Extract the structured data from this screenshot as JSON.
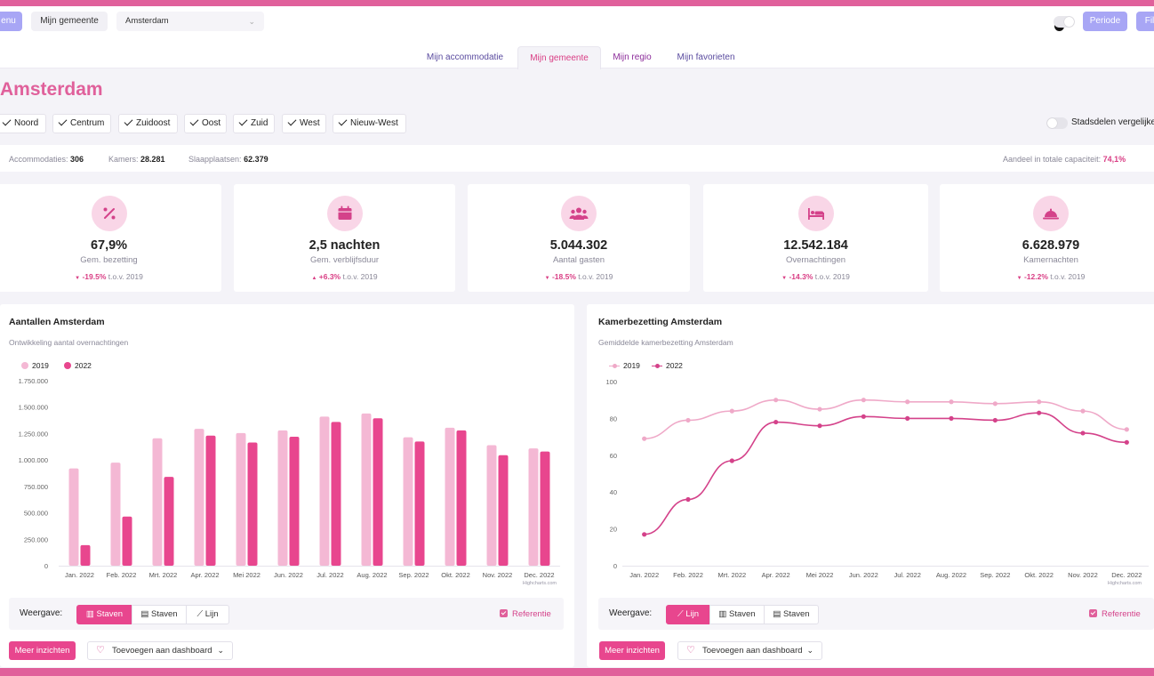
{
  "header": {
    "menu_label": "enu",
    "gemeente_button": "Mijn gemeente",
    "gemeente_select": "Amsterdam",
    "periode_label": "Periode",
    "filter_label": "Fil"
  },
  "tabs": [
    {
      "label": "Mijn accommodatie"
    },
    {
      "label": "Mijn gemeente"
    },
    {
      "label": "Mijn regio"
    },
    {
      "label": "Mijn favorieten"
    }
  ],
  "page": {
    "title": "Amsterdam",
    "compare_label": "Stadsdelen vergelijke"
  },
  "districts": [
    "Noord",
    "Centrum",
    "Zuidoost",
    "Oost",
    "Zuid",
    "West",
    "Nieuw-West"
  ],
  "stats": {
    "accommodaties_label": "Accommodaties:",
    "accommodaties": "306",
    "kamers_label": "Kamers:",
    "kamers": "28.281",
    "slaapplaatsen_label": "Slaapplaatsen:",
    "slaapplaatsen": "62.379",
    "aandeel_label": "Aandeel in totale capaciteit:",
    "aandeel": "74,1%"
  },
  "kpis": [
    {
      "icon": "percent-icon",
      "value": "67,9%",
      "label": "Gem. bezetting",
      "arrow": "▼",
      "delta": "-19.5%",
      "suffix": "t.o.v. 2019"
    },
    {
      "icon": "calendar-icon",
      "value": "2,5 nachten",
      "label": "Gem. verblijfsduur",
      "arrow": "▲",
      "delta": "+6.3%",
      "suffix": "t.o.v. 2019"
    },
    {
      "icon": "users-icon",
      "value": "5.044.302",
      "label": "Aantal gasten",
      "arrow": "▼",
      "delta": "-18.5%",
      "suffix": "t.o.v. 2019"
    },
    {
      "icon": "bed-icon",
      "value": "12.542.184",
      "label": "Overnachtingen",
      "arrow": "▼",
      "delta": "-14.3%",
      "suffix": "t.o.v. 2019"
    },
    {
      "icon": "bell-icon",
      "value": "6.628.979",
      "label": "Kamernachten",
      "arrow": "▼",
      "delta": "-12.2%",
      "suffix": "t.o.v. 2019"
    }
  ],
  "cards": {
    "left": {
      "title": "Aantallen Amsterdam",
      "subtitle": "Ontwikkeling aantal overnachtingen",
      "view_label": "Weergave:",
      "buttons": [
        "Staven",
        "Staven",
        "Lijn"
      ],
      "reference": "Referentie",
      "meer": "Meer inzichten",
      "dashboard": "Toevoegen aan dashboard",
      "credit": "Highcharts.com"
    },
    "right": {
      "title": "Kamerbezetting Amsterdam",
      "subtitle": "Gemiddelde kamerbezetting Amsterdam",
      "view_label": "Weergave:",
      "buttons": [
        "Lijn",
        "Staven",
        "Staven"
      ],
      "reference": "Referentie",
      "meer": "Meer inzichten",
      "dashboard": "Toevoegen aan dashboard",
      "credit": "Highcharts.com"
    }
  },
  "colors": {
    "accent": "#e0609b",
    "series_light": "#f4b8d4",
    "series_dark": "#e8468e",
    "lilac": "#a8a6f5"
  },
  "chart_data": [
    {
      "type": "bar",
      "title": "Aantallen Amsterdam",
      "subtitle": "Ontwikkeling aantal overnachtingen",
      "categories": [
        "Jan. 2022",
        "Feb. 2022",
        "Mrt. 2022",
        "Apr. 2022",
        "Mei 2022",
        "Jun. 2022",
        "Jul. 2022",
        "Aug. 2022",
        "Sep. 2022",
        "Okt. 2022",
        "Nov. 2022",
        "Dec. 2022"
      ],
      "series": [
        {
          "name": "2019",
          "values": [
            920000,
            975000,
            1205000,
            1295000,
            1255000,
            1280000,
            1410000,
            1440000,
            1215000,
            1305000,
            1140000,
            1110000
          ]
        },
        {
          "name": "2022",
          "values": [
            195000,
            465000,
            840000,
            1230000,
            1165000,
            1220000,
            1360000,
            1395000,
            1175000,
            1280000,
            1045000,
            1080000
          ]
        }
      ],
      "yticks": [
        "0",
        "250.000",
        "500.000",
        "750.000",
        "1.000.000",
        "1.250.000",
        "1.500.000",
        "1.750.000"
      ],
      "ylim": [
        0,
        1750000
      ],
      "legend": "top-left",
      "grid": false
    },
    {
      "type": "line",
      "title": "Kamerbezetting Amsterdam",
      "subtitle": "Gemiddelde kamerbezetting Amsterdam",
      "categories": [
        "Jan. 2022",
        "Feb. 2022",
        "Mrt. 2022",
        "Apr. 2022",
        "Mei 2022",
        "Jun. 2022",
        "Jul. 2022",
        "Aug. 2022",
        "Sep. 2022",
        "Okt. 2022",
        "Nov. 2022",
        "Dec. 2022"
      ],
      "series": [
        {
          "name": "2019",
          "values": [
            69,
            79,
            84,
            90,
            85,
            90,
            89,
            89,
            88,
            89,
            84,
            74
          ]
        },
        {
          "name": "2022",
          "values": [
            17,
            36,
            57,
            78,
            76,
            81,
            80,
            80,
            79,
            83,
            72,
            67
          ]
        }
      ],
      "yticks": [
        "0",
        "20",
        "40",
        "60",
        "80",
        "100"
      ],
      "ylim": [
        0,
        100
      ],
      "legend": "top-left",
      "grid": false
    }
  ]
}
